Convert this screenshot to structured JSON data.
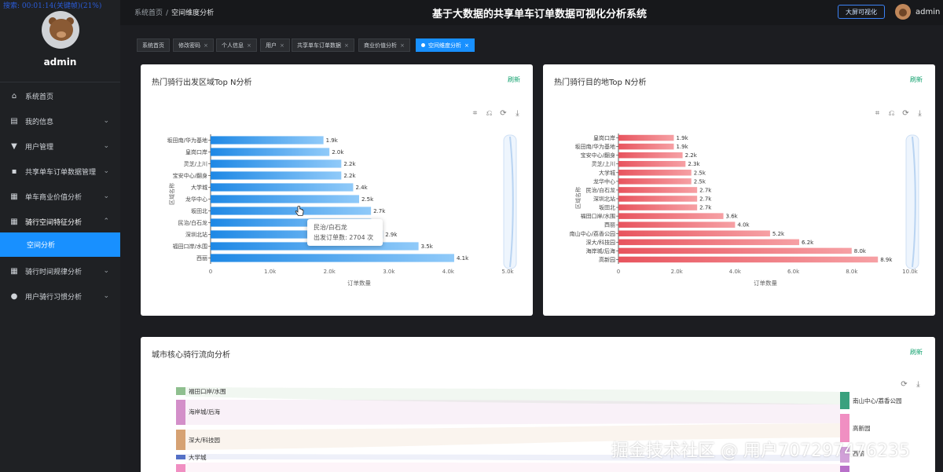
{
  "overlay": {
    "search_text": "搜索: 00:01:14(关键帧)(21%)"
  },
  "sidebar": {
    "username": "admin",
    "menu": [
      {
        "label": "系统首页",
        "icon": "home-icon"
      },
      {
        "label": "我的信息",
        "icon": "calendar-icon"
      },
      {
        "label": "用户管理",
        "icon": "stamp-icon"
      },
      {
        "label": "共享单车订单数据管理",
        "icon": "chat-icon"
      },
      {
        "label": "单车商业价值分析",
        "icon": "grid-icon"
      },
      {
        "label": "骑行空间特征分析",
        "icon": "grid-icon",
        "expanded": true
      },
      {
        "label": "骑行时间规律分析",
        "icon": "grid-icon"
      },
      {
        "label": "用户骑行习惯分析",
        "icon": "user-icon"
      }
    ],
    "active_sub": "空间分析"
  },
  "header": {
    "breadcrumb_home": "系统首页",
    "breadcrumb_sep": "/",
    "breadcrumb_current": "空间维度分析",
    "title": "基于大数据的共享单车订单数据可视化分析系统",
    "big_screen_label": "大屏可视化",
    "user": "admin"
  },
  "tabs": [
    {
      "label": "系统首页",
      "closable": false,
      "active": false
    },
    {
      "label": "修改密码",
      "closable": true,
      "active": false
    },
    {
      "label": "个人信息",
      "closable": true,
      "active": false
    },
    {
      "label": "用户",
      "closable": true,
      "active": false
    },
    {
      "label": "共享单车订单数据",
      "closable": true,
      "active": false
    },
    {
      "label": "商业价值分析",
      "closable": true,
      "active": false
    },
    {
      "label": "空间维度分析",
      "closable": true,
      "active": true
    }
  ],
  "tab_close_glyph": "×",
  "refresh_label": "刷新",
  "tooltip": {
    "name": "民治/白石龙",
    "line": "出发订单数: 2704 次"
  },
  "sankey": {
    "title": "城市核心骑行流向分析",
    "left_nodes": [
      {
        "label": "福田口岸/水围",
        "color": "#8fbf8f"
      },
      {
        "label": "海岸城/后海",
        "color": "#d38fc9"
      },
      {
        "label": "深大/科技园",
        "color": "#d6a273"
      },
      {
        "label": "大学城",
        "color": "#5470c6"
      }
    ],
    "right_nodes": [
      {
        "label": "南山中心/荔香公园",
        "color": "#3aa17e"
      },
      {
        "label": "高新园",
        "color": "#f08fc2"
      },
      {
        "label": "西丽",
        "color": "#d1a0d8"
      }
    ]
  },
  "watermark": "掘金技术社区 @ 用户707297476235",
  "chart_data": [
    {
      "type": "bar",
      "orientation": "horizontal",
      "title": "热门骑行出发区域Top N分析",
      "xlabel": "订单数量",
      "ylabel": "区域名称",
      "categories": [
        "坂田南/华为基地",
        "皇岗口岸",
        "灵芝/上川",
        "宝安中心/翻身",
        "大学城",
        "龙华中心",
        "坂田北",
        "民治/白石龙",
        "深圳北站",
        "福田口岸/水围",
        "西丽"
      ],
      "values": [
        1900,
        2000,
        2200,
        2200,
        2400,
        2500,
        2700,
        2704,
        2900,
        3500,
        4100
      ],
      "data_labels": [
        "1.9k",
        "2.0k",
        "2.2k",
        "2.2k",
        "2.4k",
        "2.5k",
        "2.7k",
        "k",
        "2.9k",
        "3.5k",
        "4.1k"
      ],
      "xlim": [
        0,
        5000
      ],
      "xticks": [
        "0",
        "1.0k",
        "2.0k",
        "3.0k",
        "4.0k",
        "5.0k"
      ],
      "colors": [
        "#1e88e5",
        "#90caf9"
      ],
      "grid": false
    },
    {
      "type": "bar",
      "orientation": "horizontal",
      "title": "热门骑行目的地Top N分析",
      "xlabel": "订单数量",
      "ylabel": "区域名称",
      "categories": [
        "皇岗口岸",
        "坂田南/华为基地",
        "宝安中心/翻身",
        "灵芝/上川",
        "大学城",
        "龙华中心",
        "民治/白石龙",
        "深圳北站",
        "坂田北",
        "福田口岸/水围",
        "西丽",
        "南山中心/荔香公园",
        "深大/科技园",
        "海岸城/后海",
        "高新园"
      ],
      "values": [
        1900,
        1900,
        2200,
        2300,
        2500,
        2500,
        2700,
        2700,
        2700,
        3600,
        4000,
        5200,
        6200,
        8000,
        8900
      ],
      "data_labels": [
        "1.9k",
        "1.9k",
        "2.2k",
        "2.3k",
        "2.5k",
        "2.5k",
        "2.7k",
        "2.7k",
        "2.7k",
        "3.6k",
        "4.0k",
        "5.2k",
        "6.2k",
        "8.0k",
        "8.9k"
      ],
      "xlim": [
        0,
        10000
      ],
      "xticks": [
        "0",
        "2.0k",
        "4.0k",
        "6.0k",
        "8.0k",
        "10.0k"
      ],
      "colors": [
        "#e8545e",
        "#f6a0a4"
      ],
      "grid": false
    }
  ]
}
